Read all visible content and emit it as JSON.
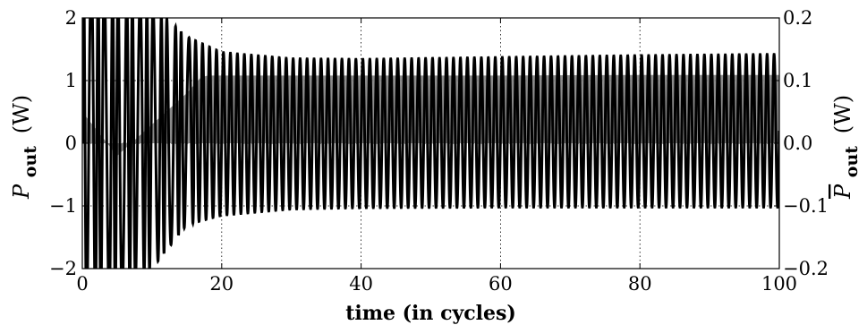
{
  "chart_data": {
    "type": "line",
    "xlabel": "time (in cycles)",
    "ylabel_left": {
      "symbol": "P",
      "subscript": "out",
      "unit": "(W)"
    },
    "ylabel_right": {
      "symbol": "P",
      "overline": true,
      "subscript": "out",
      "unit": "(W)"
    },
    "xlim": [
      0,
      100
    ],
    "ylim_left": [
      -2,
      2
    ],
    "ylim_right": [
      -0.2,
      0.2
    ],
    "grid": true,
    "x_ticks": [
      "0",
      "20",
      "40",
      "60",
      "80",
      "100"
    ],
    "x_tick_values": [
      0,
      20,
      40,
      60,
      80,
      100
    ],
    "y_ticks_left": [
      "−2",
      "−1",
      "0",
      "1",
      "2"
    ],
    "y_tick_values_left": [
      -2,
      -1,
      0,
      1,
      2
    ],
    "y_ticks_right": [
      "−0.2",
      "−0.1",
      "0.0",
      "0.1",
      "0.2"
    ],
    "y_tick_values_right": [
      -0.2,
      -0.1,
      0.0,
      0.1,
      0.2
    ],
    "series": [
      {
        "axis": "left",
        "color": "#000000",
        "description": "oscillating output power, ~1 oscillation per cycle",
        "envelope_points": [
          {
            "x": 0,
            "max": 2.8,
            "min": -2.8
          },
          {
            "x": 5,
            "max": 2.5,
            "min": -2.5
          },
          {
            "x": 10,
            "max": 2.2,
            "min": -2.0
          },
          {
            "x": 15,
            "max": 1.7,
            "min": -1.3
          },
          {
            "x": 20,
            "max": 1.45,
            "min": -1.15
          },
          {
            "x": 30,
            "max": 1.35,
            "min": -1.05
          },
          {
            "x": 40,
            "max": 1.34,
            "min": -1.03
          },
          {
            "x": 60,
            "max": 1.37,
            "min": -1.02
          },
          {
            "x": 80,
            "max": 1.4,
            "min": -1.02
          },
          {
            "x": 100,
            "max": 1.42,
            "min": -1.02
          }
        ],
        "cycles_per_unit_x": 1
      },
      {
        "axis": "right",
        "color": "#808080",
        "description": "time-averaged output power",
        "x": [
          0,
          5,
          10,
          15,
          17,
          18,
          20,
          30,
          40,
          60,
          80,
          100
        ],
        "y": [
          0.05,
          -0.02,
          0.03,
          0.08,
          0.105,
          0.108,
          0.108,
          0.108,
          0.108,
          0.108,
          0.109,
          0.109
        ]
      }
    ]
  }
}
